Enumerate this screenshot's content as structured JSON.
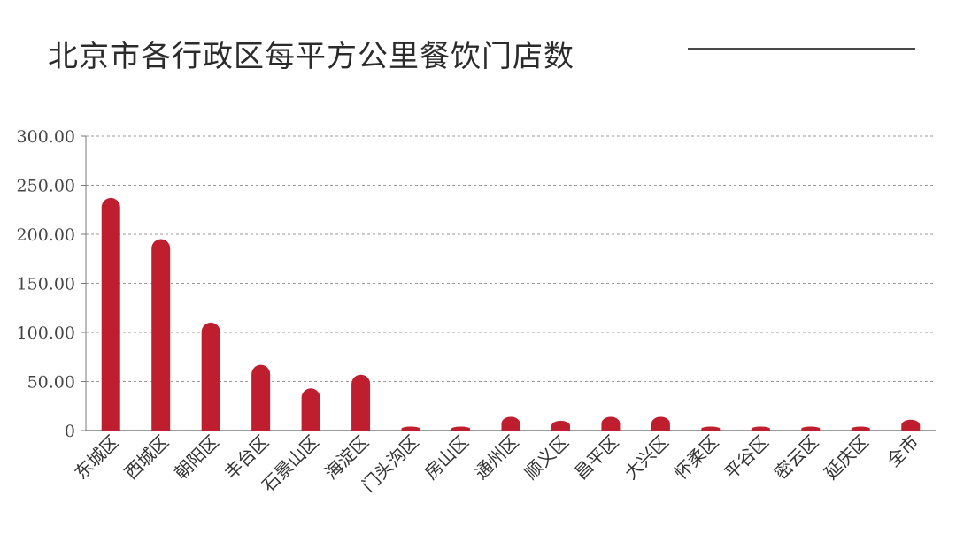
{
  "chart_data": {
    "type": "bar",
    "title": "北京市各行政区每平方公里餐饮门店数",
    "categories": [
      "东城区",
      "西城区",
      "朝阳区",
      "丰台区",
      "石景山区",
      "海淀区",
      "门头沟区",
      "房山区",
      "通州区",
      "顺义区",
      "昌平区",
      "大兴区",
      "怀柔区",
      "平谷区",
      "密云区",
      "延庆区",
      "全市"
    ],
    "values": [
      237,
      195,
      110,
      67,
      43,
      57,
      4,
      4,
      14,
      10,
      14,
      14,
      4,
      4,
      4,
      4,
      11
    ],
    "ylim": [
      0,
      300
    ],
    "yticks": [
      0,
      50,
      100,
      150,
      200,
      250,
      300
    ],
    "ytick_labels": [
      "0",
      "50.00",
      "100.00",
      "150.00",
      "200.00",
      "250.00",
      "300.00"
    ],
    "xlabel": "",
    "ylabel": "",
    "grid": true,
    "bar_color": "#bf1e2e",
    "grid_color": "#9a9a9a",
    "axis_color": "#7a7a7a"
  }
}
